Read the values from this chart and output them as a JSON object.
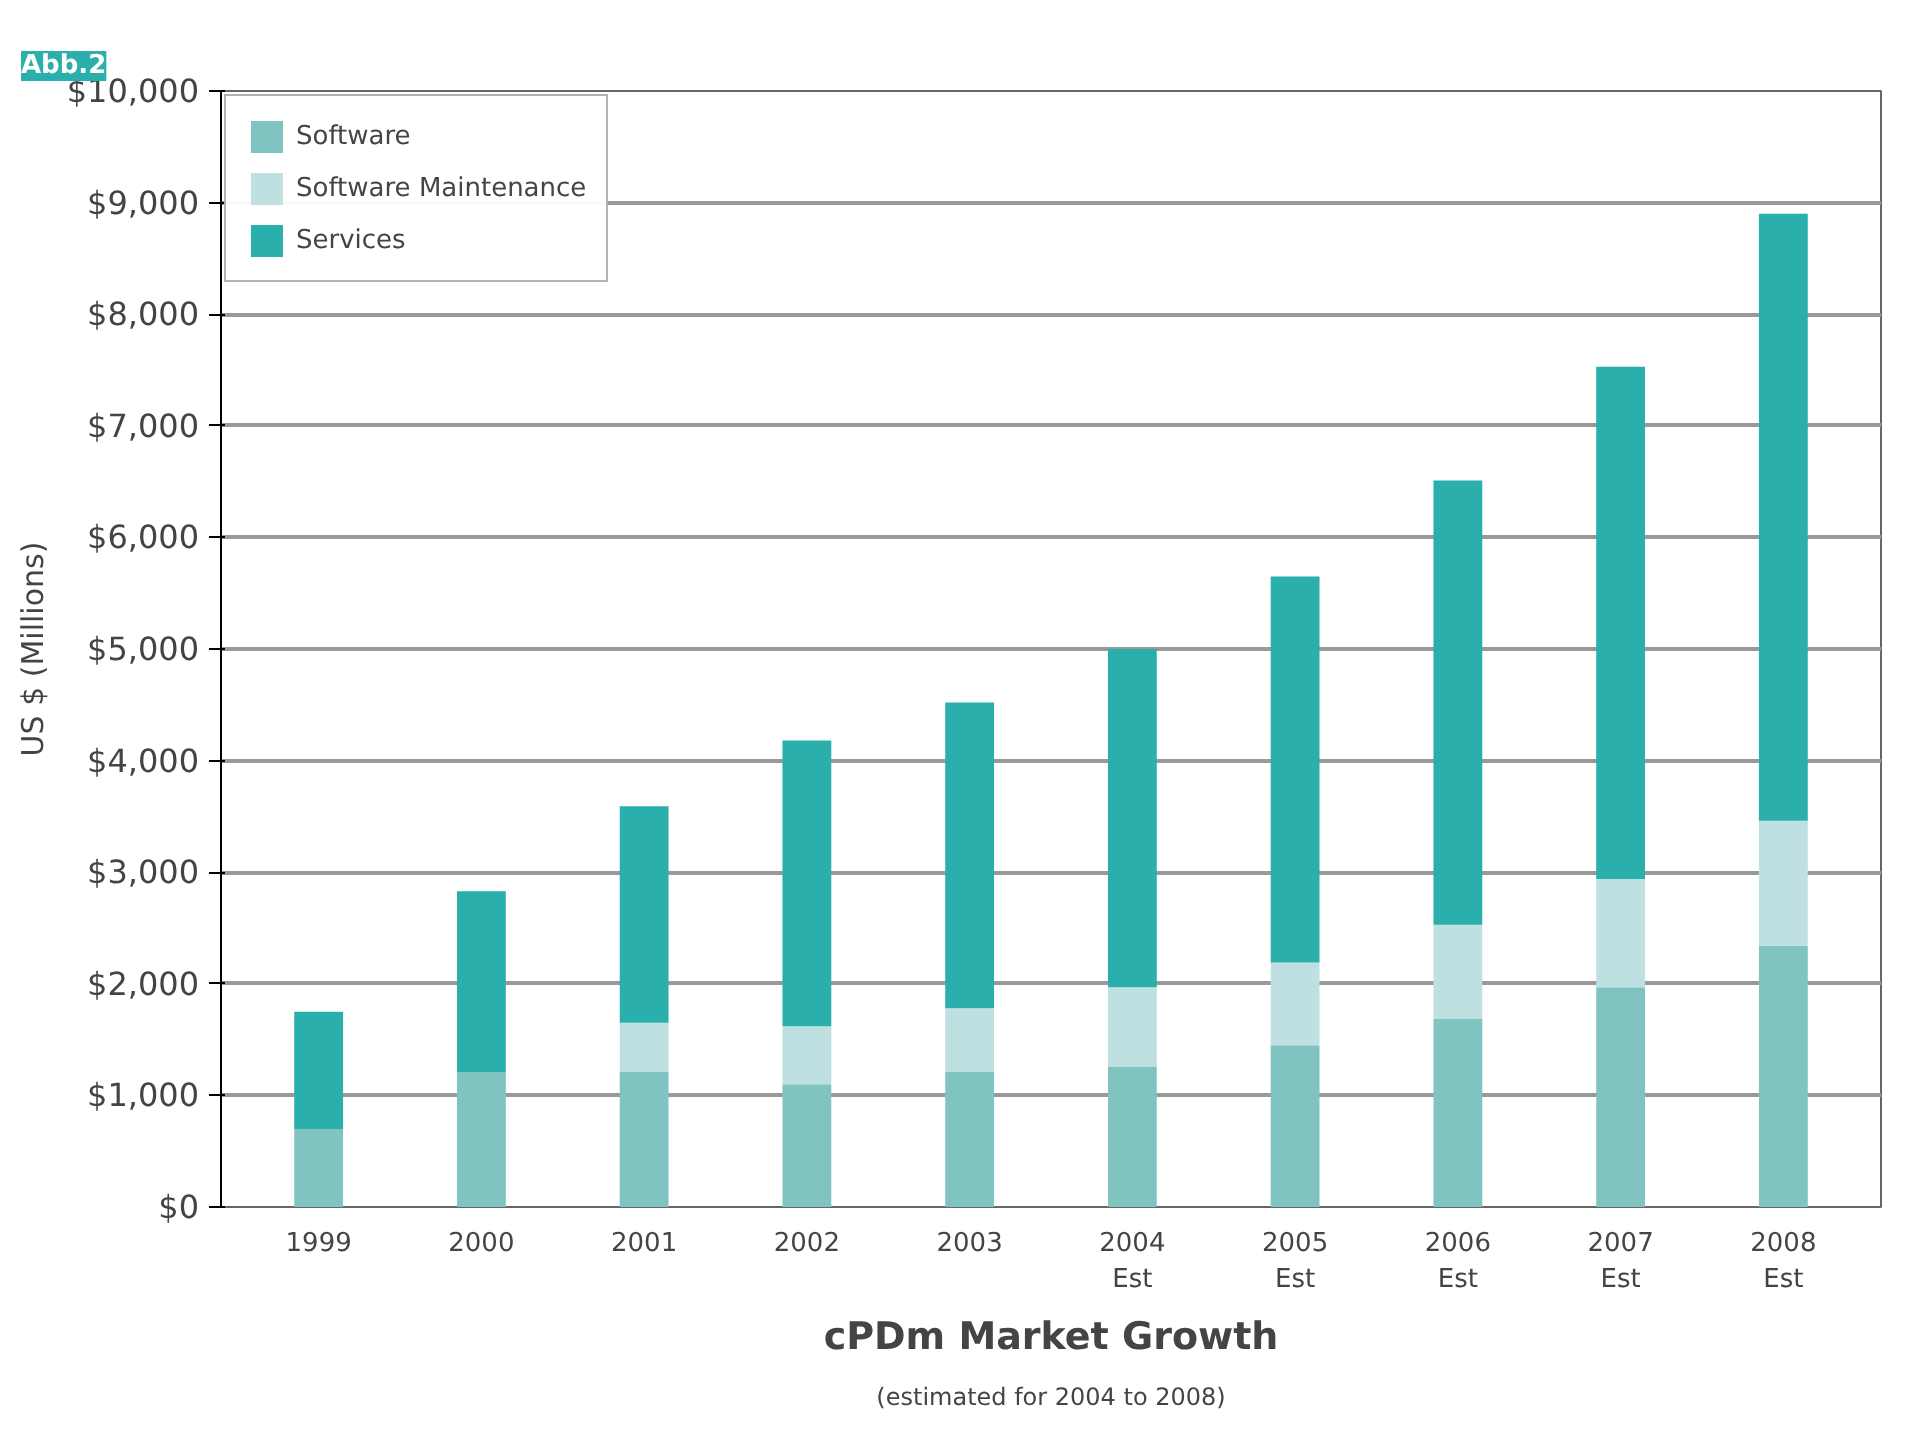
{
  "chart_data": {
    "type": "bar",
    "stacked": true,
    "title": "cPDm Market Growth",
    "subtitle": "(estimated for 2004 to 2008)",
    "ylabel": "US $ (Millions)",
    "annotations": [
      "Abb.2"
    ],
    "categories": [
      "1999",
      "2000",
      "2001",
      "2002",
      "2003",
      "2004\nEst",
      "2005\nEst",
      "2006\nEst",
      "2007\nEst",
      "2008\nEst"
    ],
    "series": [
      {
        "name": "Software",
        "color": "#80c4c2",
        "values": [
          700,
          1210,
          1210,
          1100,
          1210,
          1260,
          1450,
          1690,
          1970,
          2340
        ]
      },
      {
        "name": "Software Maintenance",
        "color": "#bfe0e0",
        "values": [
          null,
          null,
          440,
          520,
          570,
          710,
          740,
          840,
          970,
          1120
        ]
      },
      {
        "name": "Services",
        "color": "#2aafac",
        "values": [
          1050,
          1620,
          1940,
          2560,
          2740,
          3030,
          3460,
          3980,
          4590,
          5440
        ]
      }
    ],
    "ylim": [
      0,
      10000
    ],
    "yticks": [
      {
        "value": 0,
        "label": "$0"
      },
      {
        "value": 1000,
        "label": "$1,000"
      },
      {
        "value": 2000,
        "label": "$2,000"
      },
      {
        "value": 3000,
        "label": "$3,000"
      },
      {
        "value": 4000,
        "label": "$4,000"
      },
      {
        "value": 5000,
        "label": "$5,000"
      },
      {
        "value": 6000,
        "label": "$6,000"
      },
      {
        "value": 7000,
        "label": "$7,000"
      },
      {
        "value": 8000,
        "label": "$8,000"
      },
      {
        "value": 9000,
        "label": "$9,000"
      },
      {
        "value": 10000,
        "label": "$10,000"
      }
    ],
    "grid": "y",
    "legend": "top left"
  }
}
